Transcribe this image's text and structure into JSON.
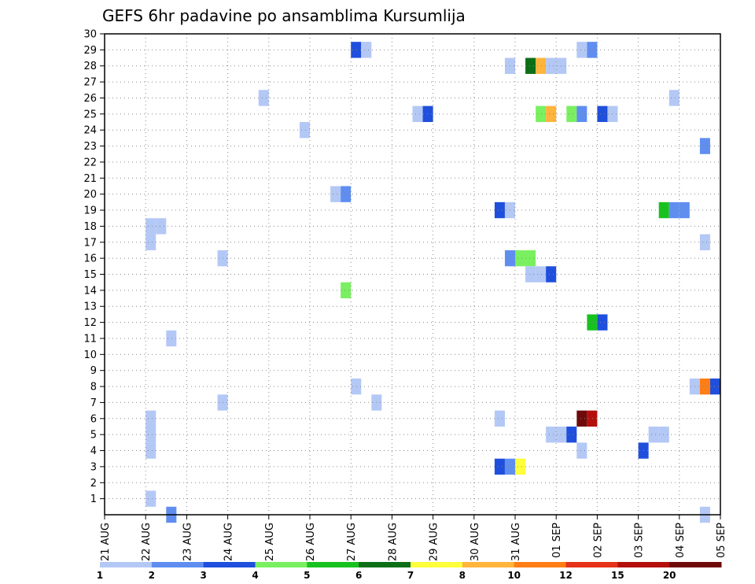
{
  "chart_data": {
    "type": "heatmap",
    "title": "GEFS 6hr padavine po ansamblima Kursumlija",
    "xlabel": "",
    "ylabel": "",
    "x_tick_labels": [
      "21 AUG",
      "22 AUG",
      "23 AUG",
      "24 AUG",
      "25 AUG",
      "26 AUG",
      "27 AUG",
      "28 AUG",
      "29 AUG",
      "30 AUG",
      "31 AUG",
      "01 SEP",
      "02 SEP",
      "03 SEP",
      "04 SEP",
      "05 SEP"
    ],
    "y_ticks": [
      1,
      2,
      3,
      4,
      5,
      6,
      7,
      8,
      9,
      10,
      11,
      12,
      13,
      14,
      15,
      16,
      17,
      18,
      19,
      20,
      21,
      22,
      23,
      24,
      25,
      26,
      27,
      28,
      29,
      30
    ],
    "x_range_days": [
      0,
      15
    ],
    "y_range": [
      0,
      30
    ],
    "time_step_hours": 6,
    "grid": true,
    "legend": {
      "position": "bottom",
      "labels": [
        "1",
        "2",
        "3",
        "4",
        "5",
        "6",
        "7",
        "8",
        "10",
        "12",
        "15",
        "20"
      ],
      "colors": [
        "#b4c8f6",
        "#5f8ef0",
        "#1f4fdc",
        "#7af060",
        "#17c21f",
        "#0d6e18",
        "#ffff3c",
        "#ffb43c",
        "#ff7d14",
        "#e63219",
        "#b40f0a",
        "#6e0a0a"
      ]
    },
    "cells_note": "each cell: [day_offset from 21 AUG 00UTC, member, category_index]",
    "cells": [
      [
        6.0,
        30,
        2
      ],
      [
        6.25,
        30,
        0
      ],
      [
        11.5,
        30,
        0
      ],
      [
        11.75,
        30,
        1
      ],
      [
        9.75,
        29,
        0
      ],
      [
        10.25,
        29,
        5
      ],
      [
        10.5,
        29,
        7
      ],
      [
        10.75,
        29,
        0
      ],
      [
        11.0,
        29,
        0
      ],
      [
        3.75,
        27,
        0
      ],
      [
        13.75,
        27,
        0
      ],
      [
        7.5,
        26,
        0
      ],
      [
        7.75,
        26,
        2
      ],
      [
        10.5,
        26,
        3
      ],
      [
        10.75,
        26,
        7
      ],
      [
        11.25,
        26,
        3
      ],
      [
        11.5,
        26,
        1
      ],
      [
        12.0,
        26,
        2
      ],
      [
        12.25,
        26,
        0
      ],
      [
        4.75,
        25,
        0
      ],
      [
        14.5,
        24,
        1
      ],
      [
        5.5,
        21,
        0
      ],
      [
        5.75,
        21,
        1
      ],
      [
        9.5,
        20,
        2
      ],
      [
        9.75,
        20,
        0
      ],
      [
        13.5,
        20,
        4
      ],
      [
        13.75,
        20,
        1
      ],
      [
        14.0,
        20,
        1
      ],
      [
        1.0,
        19,
        0
      ],
      [
        1.25,
        19,
        0
      ],
      [
        1.0,
        18,
        0
      ],
      [
        14.5,
        18,
        0
      ],
      [
        2.75,
        17,
        0
      ],
      [
        9.75,
        17,
        1
      ],
      [
        10.0,
        17,
        3
      ],
      [
        10.25,
        17,
        3
      ],
      [
        10.25,
        16,
        0
      ],
      [
        10.5,
        16,
        0
      ],
      [
        10.75,
        16,
        2
      ],
      [
        5.75,
        15,
        3
      ],
      [
        11.75,
        13,
        4
      ],
      [
        12.0,
        13,
        2
      ],
      [
        1.5,
        12,
        0
      ],
      [
        6.0,
        9,
        0
      ],
      [
        14.25,
        9,
        0
      ],
      [
        14.5,
        9,
        8
      ],
      [
        14.75,
        9,
        2
      ],
      [
        2.75,
        8,
        0
      ],
      [
        6.5,
        8,
        0
      ],
      [
        1.0,
        7,
        0
      ],
      [
        9.5,
        7,
        0
      ],
      [
        11.5,
        7,
        11
      ],
      [
        11.75,
        7,
        10
      ],
      [
        1.0,
        6,
        0
      ],
      [
        10.75,
        6,
        0
      ],
      [
        11.0,
        6,
        0
      ],
      [
        11.25,
        6,
        2
      ],
      [
        13.25,
        6,
        0
      ],
      [
        13.5,
        6,
        0
      ],
      [
        1.0,
        5,
        0
      ],
      [
        11.5,
        5,
        0
      ],
      [
        13.0,
        5,
        2
      ],
      [
        9.5,
        4,
        2
      ],
      [
        9.75,
        4,
        1
      ],
      [
        10.0,
        4,
        6
      ],
      [
        1.0,
        2,
        0
      ],
      [
        1.5,
        1,
        1
      ],
      [
        14.5,
        1,
        0
      ]
    ]
  }
}
